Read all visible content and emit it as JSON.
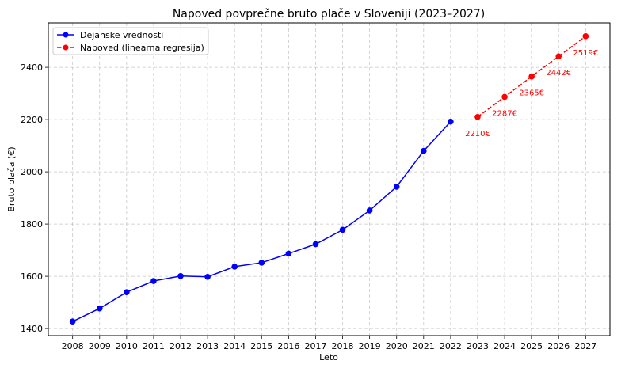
{
  "chart_data": {
    "type": "line",
    "title": "Napoved povprečne bruto plače v Sloveniji (2023–2027)",
    "xlabel": "Leto",
    "ylabel": "Bruto plača (€)",
    "x_ticks": [
      "2008",
      "2009",
      "2010",
      "2011",
      "2012",
      "2013",
      "2014",
      "2015",
      "2016",
      "2017",
      "2018",
      "2019",
      "2020",
      "2021",
      "2022",
      "2023",
      "2024",
      "2025",
      "2026",
      "2027"
    ],
    "y_ticks": [
      1400,
      1600,
      1800,
      2000,
      2200,
      2400
    ],
    "xlim": [
      2007.1,
      2027.9
    ],
    "ylim": [
      1373,
      2570
    ],
    "grid": true,
    "legend_position": "top-left",
    "series": [
      {
        "name": "Dejanske vrednosti",
        "color": "#0000ff",
        "line_style": "solid",
        "x": [
          2008,
          2009,
          2010,
          2011,
          2012,
          2013,
          2014,
          2015,
          2016,
          2017,
          2018,
          2019,
          2020,
          2021,
          2022
        ],
        "y": [
          1427,
          1477,
          1539,
          1582,
          1601,
          1598,
          1637,
          1652,
          1687,
          1723,
          1778,
          1852,
          1943,
          2080,
          2192
        ],
        "point_labels": []
      },
      {
        "name": "Napoved (linearna regresija)",
        "color": "#ff0000",
        "line_style": "dashed",
        "x": [
          2023,
          2024,
          2025,
          2026,
          2027
        ],
        "y": [
          2210,
          2287,
          2365,
          2442,
          2519
        ],
        "point_labels": [
          "2210€",
          "2287€",
          "2365€",
          "2442€",
          "2519€"
        ]
      }
    ]
  }
}
